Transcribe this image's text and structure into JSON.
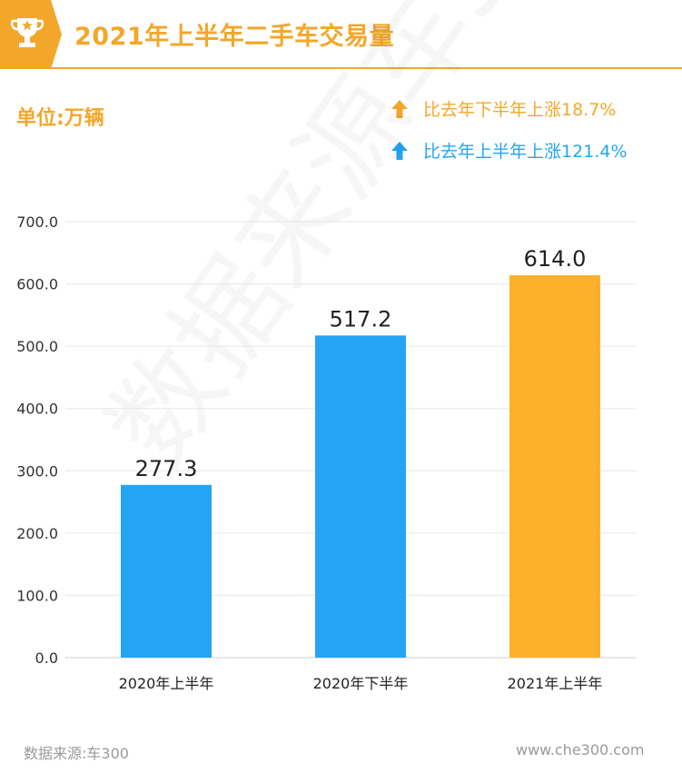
{
  "header": {
    "title": "2021年上半年二手车交易量",
    "icon": "trophy-icon"
  },
  "unit_label": "单位:万辆",
  "comparisons": [
    {
      "text": "比去年下半年上涨18.7%",
      "icon": "up-arrow-icon",
      "color": "#f3a72a"
    },
    {
      "text": "比去年上半年上涨121.4%",
      "icon": "up-arrow-icon",
      "color": "#25a4f4"
    }
  ],
  "colors": {
    "accent": "#f3a72a",
    "blue": "#25a4f4",
    "bar_highlight": "#fcb02c",
    "axis_text": "#333333",
    "grid": "#e6e6e6"
  },
  "chart_data": {
    "type": "bar",
    "categories": [
      "2020年上半年",
      "2020年下半年",
      "2021年上半年"
    ],
    "values": [
      277.3,
      517.2,
      614.0
    ],
    "value_labels": [
      "277.3",
      "517.2",
      "614.0"
    ],
    "bar_colors": [
      "#25a4f4",
      "#25a4f4",
      "#fcb02c"
    ],
    "yticks": [
      "0.0",
      "100.0",
      "200.0",
      "300.0",
      "400.0",
      "500.0",
      "600.0",
      "700.0"
    ],
    "ylim": [
      0,
      700
    ],
    "grid": true,
    "title": "",
    "xlabel": "",
    "ylabel": ""
  },
  "watermark": "数据来源车300",
  "footer": {
    "source": "数据来源:车300",
    "url": "www.che300.com"
  }
}
